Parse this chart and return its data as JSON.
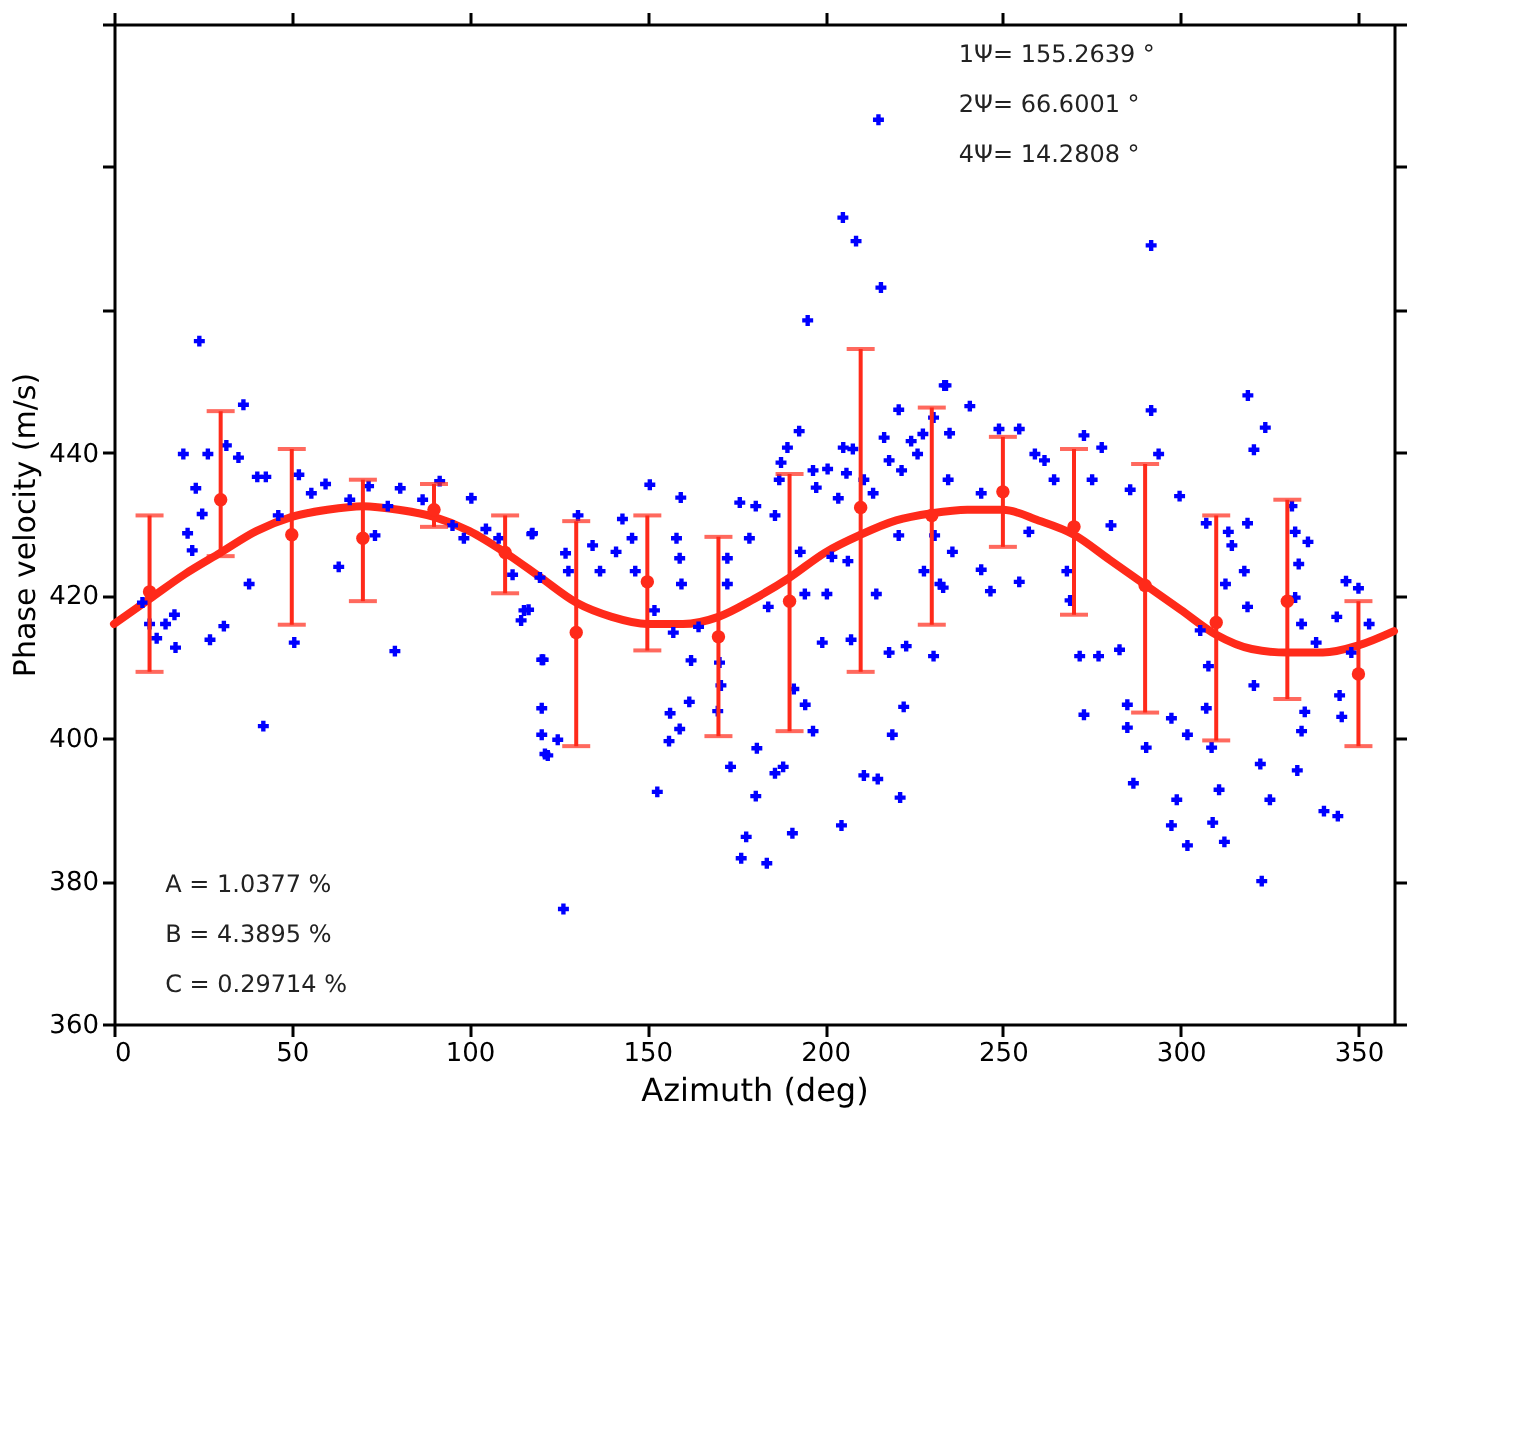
{
  "chart_data": {
    "type": "scatter",
    "xlabel": "Azimuth (deg)",
    "ylabel": "Phase velocity (m/s)",
    "xlim": [
      0,
      360
    ],
    "ylim": [
      360,
      500
    ],
    "xticks": [
      0,
      50,
      100,
      150,
      200,
      250,
      300,
      350
    ],
    "yticks": [
      360,
      380,
      400,
      420,
      440,
      {
        "value": 460,
        "label": null
      },
      {
        "value": 480,
        "label": null
      },
      {
        "value": 500,
        "label": null
      }
    ],
    "annotations": [
      "1Ψ= 155.2639 °",
      "2Ψ= 66.6001 °",
      "4Ψ= 14.2808 °",
      "A = 1.0377 %",
      "B = 4.3895 %",
      "C = 0.29714 %"
    ],
    "series": [
      {
        "color": "#0000ff",
        "marker": "cross",
        "x": [
          8,
          10,
          12,
          14.5,
          17,
          17.3,
          19.5,
          20.7,
          22,
          23,
          24,
          24.8,
          26.4,
          27,
          30.9,
          31.6,
          35,
          36.4,
          38,
          40.3,
          42,
          42.7,
          46.2,
          50.7,
          52,
          55.5,
          59.5,
          63.2,
          66.3,
          71.6,
          73.4,
          77,
          79,
          80.5,
          86.8,
          91.6,
          95.2,
          98.4,
          100.5,
          104.6,
          108.2,
          112.1,
          114.5,
          115.3,
          116.6,
          117.5,
          117.7,
          119.8,
          120.3,
          120.3,
          120.3,
          120.7,
          121.2,
          122,
          124.8,
          126.4,
          127,
          127.8,
          130.5,
          134.6,
          136.7,
          141.2,
          143,
          145.7,
          146.6,
          150.7,
          152,
          152.8,
          156.1,
          156.4,
          157.3,
          158.2,
          159.1,
          159.1,
          159.4,
          159.6,
          161.8,
          162.3,
          164.4,
          169.8,
          170.3,
          170.7,
          172.5,
          172.5,
          173.4,
          176,
          176.4,
          177.8,
          178.7,
          180.5,
          180.5,
          180.8,
          183.6,
          184,
          185.9,
          185.9,
          187.1,
          187.6,
          188.2,
          189.4,
          190.8,
          191.2,
          192.7,
          193,
          194.3,
          194.4,
          195.1,
          196.6,
          196.6,
          197.5,
          199.2,
          200.5,
          200.7,
          201.9,
          203.7,
          204.6,
          205,
          205.1,
          206,
          206.4,
          207.3,
          207.8,
          208.7,
          210.9,
          210.9,
          213.5,
          214.4,
          214.8,
          215,
          215.7,
          216.6,
          218,
          218,
          218.9,
          220.7,
          220.7,
          221.1,
          221.5,
          222.1,
          222.8,
          224.2,
          226,
          227.5,
          227.8,
          230.5,
          230.5,
          230.8,
          232.3,
          233.2,
          233.5,
          234,
          234.6,
          235,
          235.8,
          240.7,
          243.9,
          243.9,
          246.5,
          248.9,
          254.6,
          254.6,
          257.3,
          259,
          261.7,
          264.4,
          268,
          268.9,
          271.6,
          272.8,
          272.8,
          275.1,
          276.9,
          277.8,
          280.4,
          282.8,
          285,
          285,
          285.8,
          286.7,
          290.3,
          291.7,
          291.7,
          293.8,
          297.4,
          297.4,
          298.9,
          299.7,
          301.9,
          301.9,
          305.5,
          307.2,
          307.2,
          307.8,
          308.7,
          309,
          310.8,
          312.3,
          312.6,
          313.4,
          314.4,
          317.9,
          318.8,
          318.8,
          318.9,
          320.6,
          320.6,
          322.4,
          322.8,
          323.8,
          325.1,
          331.3,
          332.2,
          332.2,
          332.8,
          333.2,
          334,
          334,
          334.9,
          335.8,
          338.1,
          340.3,
          343.9,
          344.2,
          344.7,
          345.3,
          346.5,
          348,
          350,
          353
        ],
        "values": [
          419,
          416,
          414,
          416,
          417.3,
          412.7,
          439.8,
          428.7,
          426.3,
          435,
          455.6,
          431.4,
          439.8,
          413.8,
          415.7,
          441,
          439.3,
          446.7,
          421.6,
          436.6,
          401.7,
          436.6,
          431.2,
          413.4,
          436.9,
          434.3,
          435.6,
          424,
          433.4,
          435.3,
          428.4,
          432.5,
          412.2,
          435,
          433.4,
          436,
          429.8,
          428,
          433.6,
          429.3,
          428,
          422.9,
          416.5,
          417.9,
          418,
          428.6,
          428.7,
          422.5,
          411,
          404.2,
          400.5,
          411,
          397.8,
          397.6,
          399.8,
          376.1,
          425.9,
          423.4,
          431.2,
          427,
          423.4,
          426.1,
          430.7,
          428,
          423.4,
          435.5,
          417.9,
          392.5,
          399.6,
          403.5,
          414.8,
          428,
          401.3,
          425.2,
          433.7,
          421.6,
          405.1,
          410.9,
          415.6,
          403.8,
          410.6,
          407.4,
          421.6,
          425.2,
          396,
          433,
          383.2,
          386.2,
          428,
          391.9,
          432.5,
          398.6,
          382.5,
          418.4,
          395.1,
          431.2,
          436.2,
          438.6,
          396,
          440.7,
          386.7,
          406.9,
          443,
          426.1,
          420.2,
          404.7,
          458.5,
          401,
          437.5,
          435.1,
          413.4,
          420.2,
          437.7,
          425.4,
          433.6,
          387.8,
          472.9,
          440.7,
          437.1,
          424.8,
          413.8,
          440.5,
          469.6,
          436.2,
          394.8,
          434.3,
          420.2,
          394.3,
          486.6,
          463.1,
          442.1,
          438.9,
          412,
          400.5,
          446,
          428.4,
          391.7,
          437.5,
          404.4,
          412.9,
          441.6,
          439.8,
          442.6,
          423.4,
          444.9,
          411.5,
          428.4,
          421.6,
          421.1,
          449.4,
          449.4,
          436.2,
          442.7,
          426.1,
          446.5,
          434.3,
          423.6,
          420.6,
          443.3,
          443.3,
          421.9,
          428.9,
          439.8,
          438.9,
          436.2,
          423.4,
          419.3,
          411.5,
          442.4,
          403.3,
          436.2,
          411.5,
          440.7,
          429.8,
          412.4,
          404.7,
          401.5,
          434.8,
          393.7,
          398.7,
          469,
          445.9,
          439.8,
          402.8,
          387.8,
          391.4,
          433.9,
          400.5,
          385,
          415.1,
          404.2,
          430.1,
          410.1,
          398.7,
          388.2,
          392.8,
          385.5,
          421.6,
          428.9,
          427,
          423.4,
          430.1,
          418.4,
          448,
          440.4,
          407.4,
          396.4,
          380,
          443.5,
          391.4,
          432.5,
          428.9,
          419.7,
          395.5,
          424.4,
          401,
          416,
          403.7,
          427.5,
          413.4,
          389.8,
          417,
          389.1,
          406,
          403,
          422,
          412,
          421,
          416
        ]
      },
      {
        "color": "#ff2a1a",
        "marker": "circle",
        "x": [
          10,
          30,
          50,
          70,
          90,
          110,
          130,
          150,
          170,
          190,
          210,
          230,
          250,
          270,
          290,
          310,
          330,
          350
        ],
        "values": [
          420.5,
          433.4,
          428.5,
          428,
          432,
          426,
          414.8,
          421.9,
          414.2,
          419.2,
          432.3,
          431.2,
          434.5,
          429.6,
          421.4,
          416.2,
          419.2,
          409
        ],
        "errors": [
          [
            409.3,
            431.2
          ],
          [
            425.5,
            445.8
          ],
          [
            415.9,
            440.5
          ],
          [
            419.2,
            436.2
          ],
          [
            429.6,
            435.6
          ],
          [
            420.3,
            431.2
          ],
          [
            398.9,
            430.4
          ],
          [
            412.3,
            431.2
          ],
          [
            400.3,
            428.2
          ],
          [
            401,
            437
          ],
          [
            409.3,
            454.5
          ],
          [
            415.9,
            446.3
          ],
          [
            426.8,
            442.2
          ],
          [
            417.3,
            440.5
          ],
          [
            403.6,
            438.4
          ],
          [
            399.7,
            431.2
          ],
          [
            405.5,
            433.4
          ],
          [
            398.9,
            419.2
          ]
        ]
      },
      {
        "type": "line",
        "color": "#ff2a1a",
        "x": [
          0,
          10,
          20,
          30,
          40,
          50,
          60,
          70,
          80,
          90,
          100,
          110,
          120,
          130,
          140,
          150,
          160,
          170,
          180,
          190,
          200,
          210,
          220,
          230,
          240,
          250,
          260,
          270,
          280,
          290,
          300,
          310,
          320,
          330,
          340,
          350,
          360
        ],
        "values": [
          416,
          419.5,
          423,
          426,
          429,
          431,
          432,
          432.5,
          432,
          431,
          429,
          426,
          422.5,
          419,
          417,
          416,
          416,
          417,
          419.5,
          422.5,
          426,
          428.5,
          430.5,
          431.5,
          432,
          432,
          430.5,
          428.5,
          425,
          421.5,
          418,
          414.5,
          412.5,
          412,
          412,
          413,
          415
        ]
      }
    ]
  }
}
